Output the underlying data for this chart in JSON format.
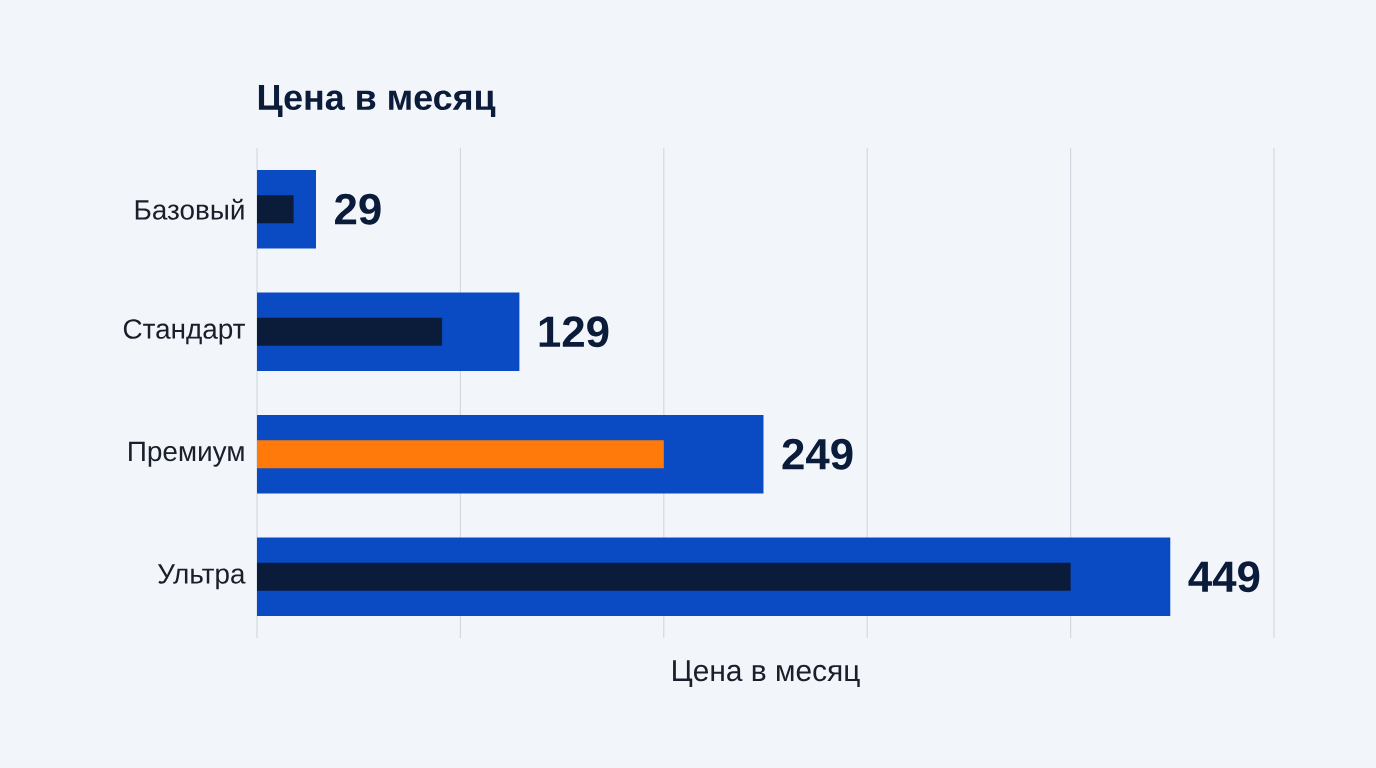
{
  "chart_data": {
    "type": "bar",
    "orientation": "horizontal",
    "title": "Цена в месяц",
    "xlabel": "Цена в месяц",
    "categories": [
      "Базовый",
      "Стандарт",
      "Премиум",
      "Ультра"
    ],
    "series": [
      {
        "color": "#0a4bc4",
        "values": [
          29,
          129,
          249,
          449
        ],
        "value_labels": [
          "29",
          "129",
          "249",
          "449"
        ]
      },
      {
        "colors": [
          "#0b1b3a",
          "#0b1b3a",
          "#ff7a0a",
          "#0b1b3a"
        ],
        "values": [
          18,
          91,
          200,
          400
        ]
      }
    ],
    "xlim": [
      0,
      500
    ],
    "xticks": [
      {
        "value": 0,
        "label": null
      },
      {
        "value": 100,
        "label": null
      },
      {
        "value": 200,
        "label": null
      },
      {
        "value": 300,
        "label": null
      },
      {
        "value": 400,
        "label": null
      },
      {
        "value": 500,
        "label": null
      }
    ],
    "grid": "x",
    "tick_labels": "y"
  }
}
